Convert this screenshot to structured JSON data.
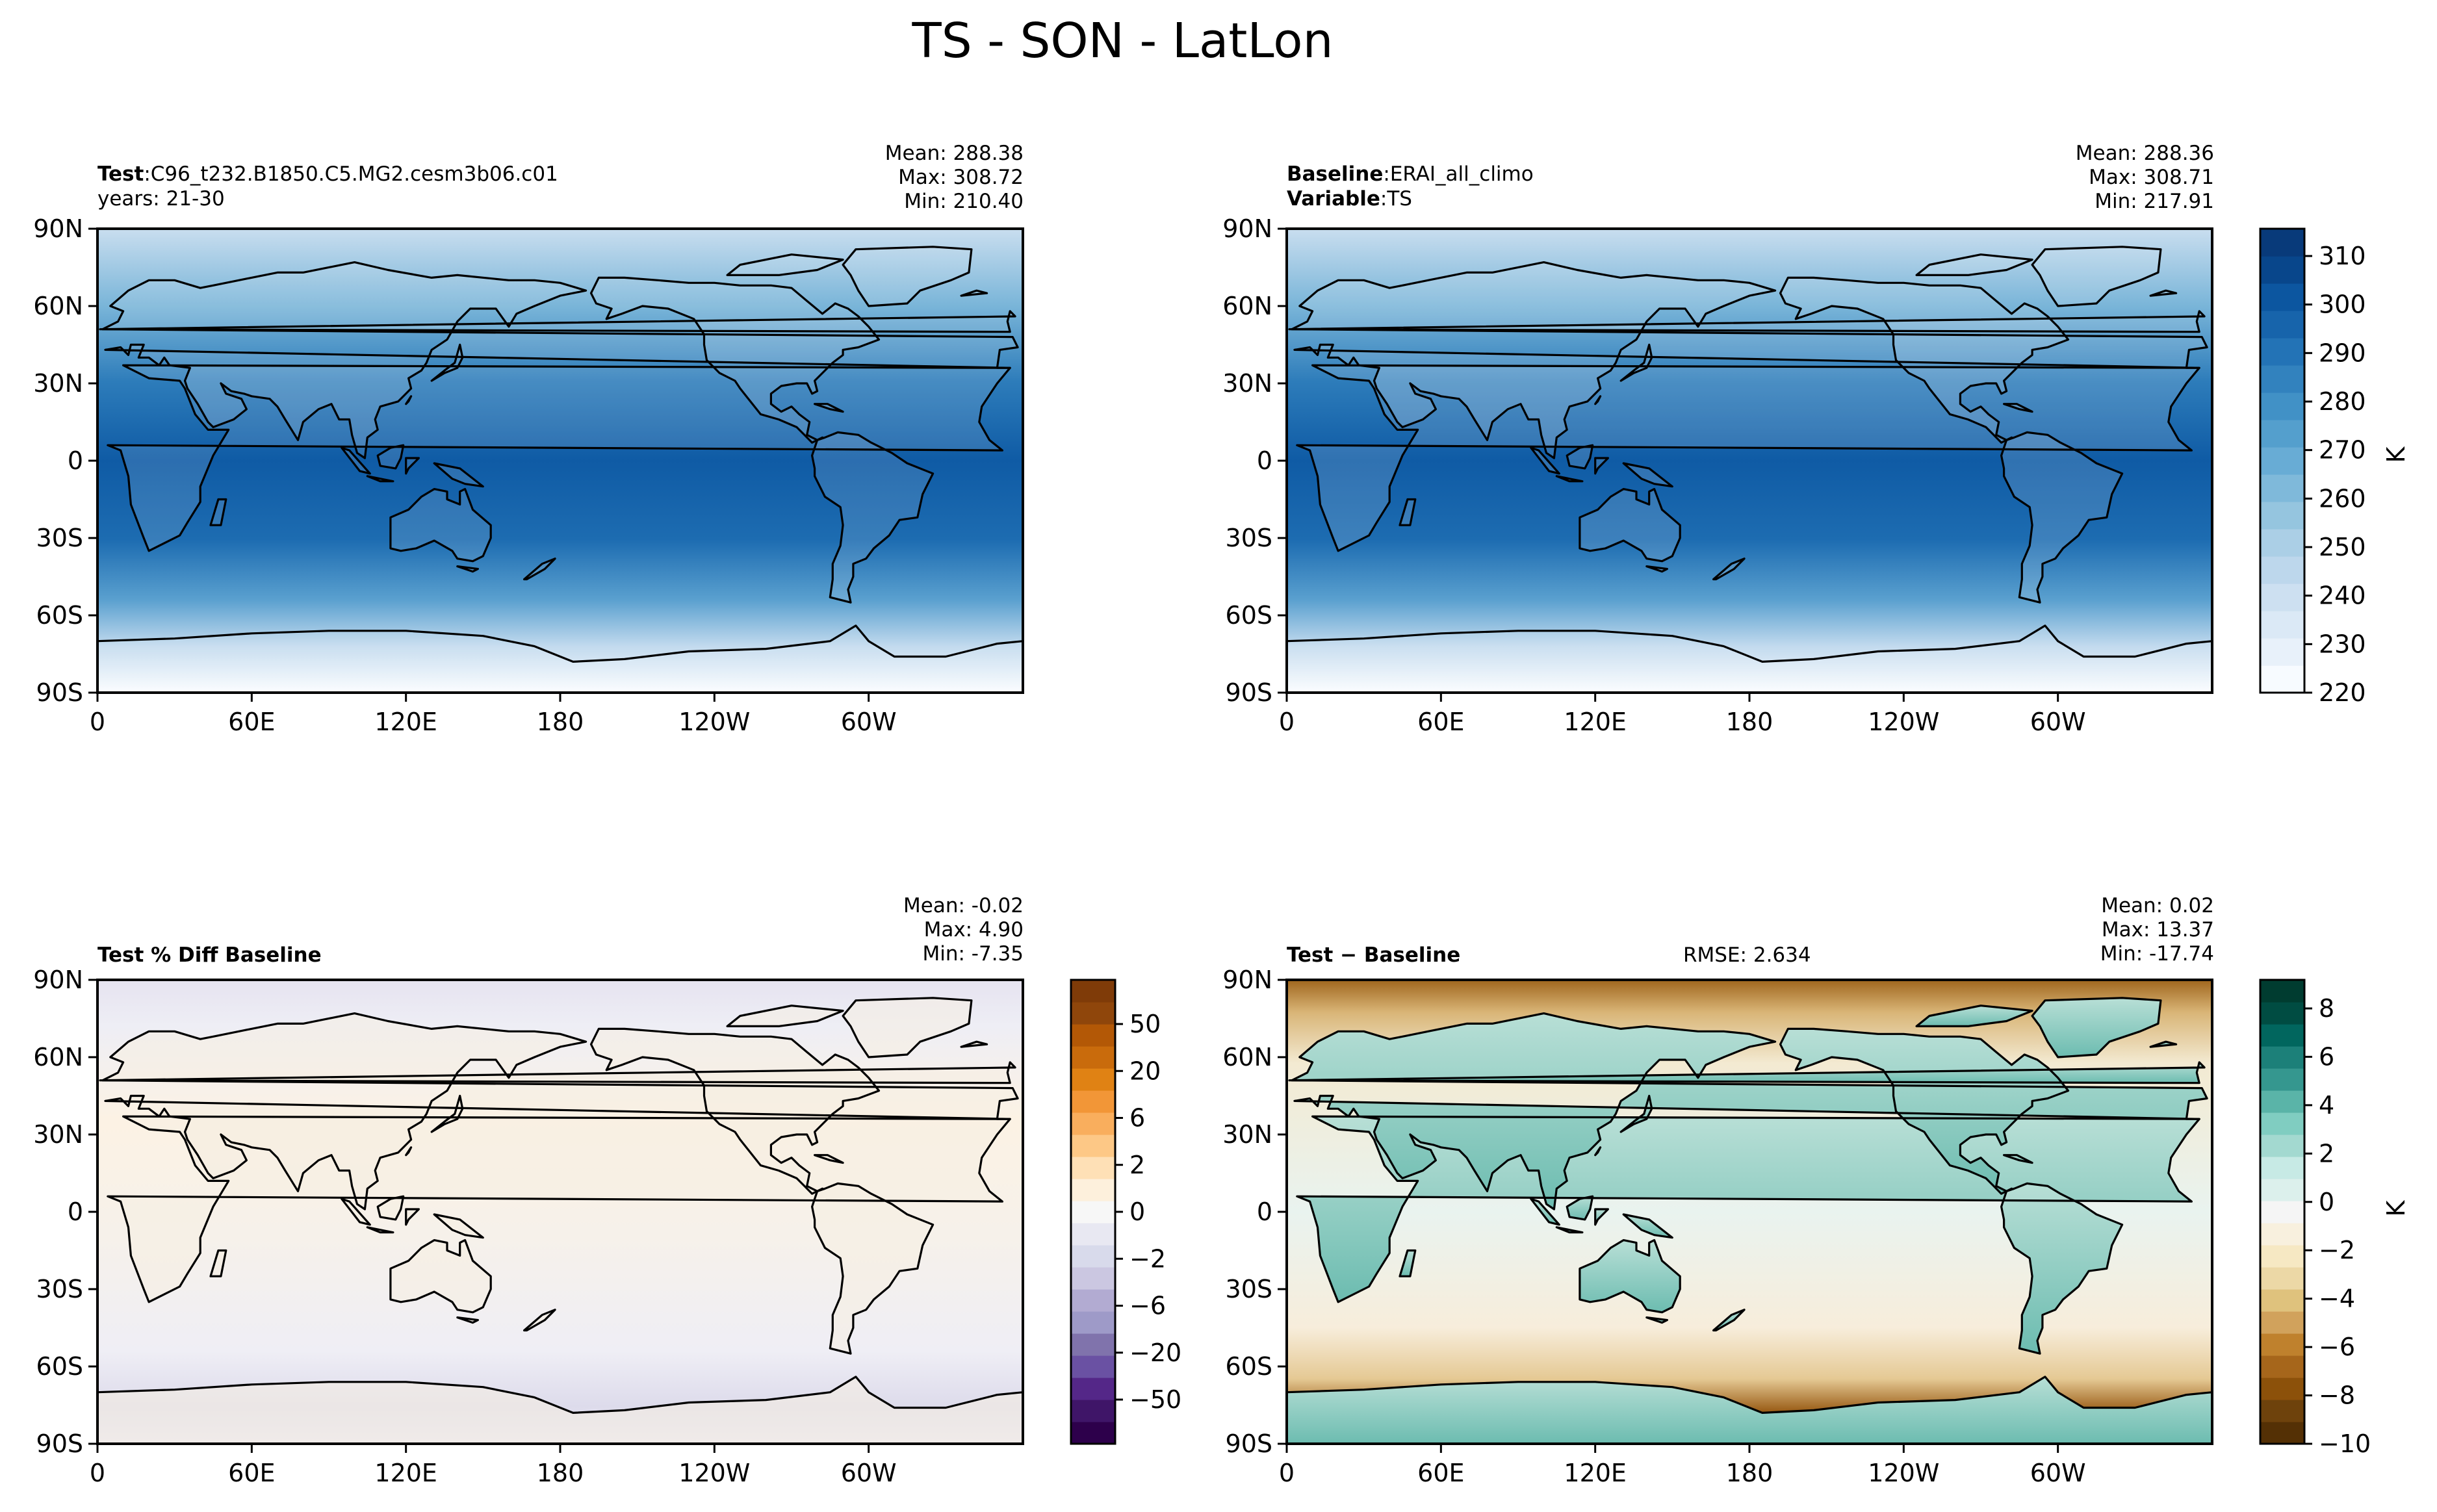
{
  "figure": {
    "title": "TS - SON - LatLon"
  },
  "panels": [
    {
      "id": "test",
      "label_bold": "Test",
      "label_text": "C96_t232.B1850.C5.MG2.cesm3b06.c01",
      "line2_bold": "",
      "line2_text": "years: 21-30",
      "mean": "Mean: 288.38",
      "max": "Max: 308.72",
      "min": "Min: 210.40",
      "rmse": ""
    },
    {
      "id": "baseline",
      "label_bold": "Baseline",
      "label_text": "ERAI_all_climo",
      "line2_bold": "Variable",
      "line2_text": "TS",
      "mean": "Mean: 288.36",
      "max": "Max: 308.71",
      "min": "Min: 217.91",
      "rmse": ""
    },
    {
      "id": "pctdiff",
      "label_bold": "Test % Diff Baseline",
      "label_text": "",
      "line2_bold": "",
      "line2_text": "",
      "mean": "Mean: -0.02",
      "max": "Max:  4.90",
      "min": "Min: -7.35",
      "rmse": ""
    },
    {
      "id": "diff",
      "label_bold": "Test − Baseline",
      "label_text": "",
      "line2_bold": "",
      "line2_text": "",
      "mean": "Mean:  0.02",
      "max": "Max: 13.37",
      "min": "Min: -17.74",
      "rmse": "RMSE: 2.634"
    }
  ],
  "chart_data": [
    {
      "type": "heatmap",
      "panel": "test",
      "field": "TS",
      "units": "K",
      "xticks": [
        "0",
        "60E",
        "120E",
        "180",
        "120W",
        "60W"
      ],
      "yticks": [
        "90N",
        "60N",
        "30N",
        "0",
        "30S",
        "60S",
        "90S"
      ],
      "xlim": [
        0,
        360
      ],
      "ylim": [
        -90,
        90
      ],
      "zonal_profile": {
        "lat": [
          90,
          60,
          30,
          0,
          -30,
          -60,
          -90
        ],
        "value": [
          245,
          262,
          290,
          300,
          292,
          272,
          222
        ]
      }
    },
    {
      "type": "heatmap",
      "panel": "baseline",
      "field": "TS",
      "units": "K",
      "xticks": [
        "0",
        "60E",
        "120E",
        "180",
        "120W",
        "60W"
      ],
      "yticks": [
        "90N",
        "60N",
        "30N",
        "0",
        "30S",
        "60S",
        "90S"
      ],
      "xlim": [
        0,
        360
      ],
      "ylim": [
        -90,
        90
      ],
      "zonal_profile": {
        "lat": [
          90,
          60,
          30,
          0,
          -30,
          -60,
          -90
        ],
        "value": [
          246,
          263,
          291,
          300,
          293,
          272,
          228
        ]
      }
    },
    {
      "type": "heatmap",
      "panel": "pctdiff",
      "units": "",
      "xticks": [
        "0",
        "60E",
        "120E",
        "180",
        "120W",
        "60W"
      ],
      "yticks": [
        "90N",
        "60N",
        "30N",
        "0",
        "30S",
        "60S",
        "90S"
      ],
      "xlim": [
        0,
        360
      ],
      "ylim": [
        -90,
        90
      ]
    },
    {
      "type": "heatmap",
      "panel": "diff",
      "units": "K",
      "xticks": [
        "0",
        "60E",
        "120E",
        "180",
        "120W",
        "60W"
      ],
      "yticks": [
        "90N",
        "60N",
        "30N",
        "0",
        "30S",
        "60S",
        "90S"
      ],
      "xlim": [
        0,
        360
      ],
      "ylim": [
        -90,
        90
      ]
    }
  ],
  "colorbars": [
    {
      "id": "cb-field",
      "label": "K",
      "ticks": [
        "310",
        "300",
        "290",
        "280",
        "270",
        "260",
        "250",
        "240",
        "230",
        "220"
      ],
      "colors": [
        "#f7fbff",
        "#e8f1fa",
        "#dbe9f6",
        "#cde0f1",
        "#bdd7ec",
        "#abcfe6",
        "#95c5df",
        "#7fb9da",
        "#68acd5",
        "#549fcd",
        "#4191c6",
        "#3282be",
        "#2373b6",
        "#1764ab",
        "#0c56a0",
        "#08468b",
        "#083a7a"
      ]
    },
    {
      "id": "cb-pct",
      "label": "",
      "ticks": [
        "50",
        "20",
        "6",
        "2",
        "0",
        "−2",
        "−6",
        "−20",
        "−50"
      ],
      "colors": [
        "#2d004b",
        "#3f1568",
        "#542788",
        "#6a51a3",
        "#8073ac",
        "#9e9ac8",
        "#b2abd2",
        "#cbc7e1",
        "#d8daeb",
        "#e8e8f2",
        "#f7f7f7",
        "#fdf0dc",
        "#fee0b6",
        "#fdc886",
        "#f9ae5d",
        "#f29637",
        "#e08214",
        "#c96b0c",
        "#b35806",
        "#8f460b",
        "#7f3b08"
      ]
    },
    {
      "id": "cb-diff",
      "label": "K",
      "ticks": [
        "8",
        "6",
        "4",
        "2",
        "0",
        "−2",
        "−4",
        "−6",
        "−8",
        "−10"
      ],
      "colors": [
        "#543005",
        "#6e420c",
        "#8c510a",
        "#a6661b",
        "#bf812d",
        "#d1a25c",
        "#dfc27d",
        "#ecd8a6",
        "#f6e8c3",
        "#f8f0de",
        "#f5f5f5",
        "#dcf0ec",
        "#c7eae5",
        "#a3d9d0",
        "#80cdc1",
        "#5ab4a8",
        "#35978f",
        "#1c8079",
        "#01665e",
        "#004c42",
        "#003c30"
      ]
    }
  ]
}
